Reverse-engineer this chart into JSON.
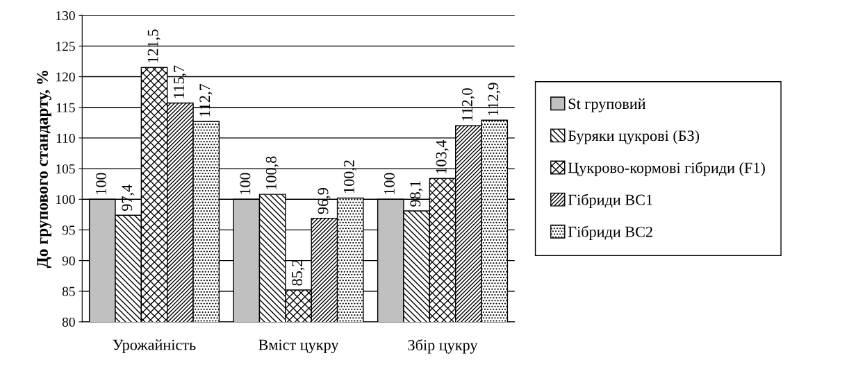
{
  "chart_data": {
    "type": "bar",
    "ylabel": "До групового стандарту, %",
    "categories": [
      "Урожайність",
      "Вміст цукру",
      "Збір цукру"
    ],
    "series": [
      {
        "name": "St груповий",
        "color": "#c0c0c0",
        "values": [
          100,
          100,
          100
        ],
        "value_labels": [
          "100",
          "100",
          "100"
        ]
      },
      {
        "name": "Буряки цукрові (БЗ)",
        "color": "#000000",
        "values": [
          97.4,
          100.8,
          98.1
        ],
        "value_labels": [
          "97,4",
          "100,8",
          "98,1"
        ]
      },
      {
        "name": "Цукрово-кормові гібриди (F1)",
        "color": "#000000",
        "values": [
          121.5,
          85.2,
          103.4
        ],
        "value_labels": [
          "121,5",
          "85,2",
          "103,4"
        ]
      },
      {
        "name": "Гібриди ВС1",
        "color": "#000000",
        "values": [
          115.7,
          96.9,
          112.0
        ],
        "value_labels": [
          "115,7",
          "96,9",
          "112,0"
        ]
      },
      {
        "name": "Гібриди ВС2",
        "color": "#000000",
        "values": [
          112.7,
          100.2,
          112.9
        ],
        "value_labels": [
          "112,7",
          "100,2",
          "112,9"
        ]
      }
    ],
    "ylim": [
      80,
      130
    ],
    "yticks": [
      80,
      85,
      90,
      95,
      100,
      105,
      110,
      115,
      120,
      125,
      130
    ],
    "grid": "y",
    "legend": "right"
  }
}
